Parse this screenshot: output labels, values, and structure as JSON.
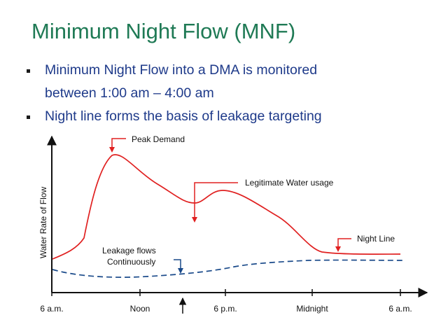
{
  "slide": {
    "title": "Minimum Night Flow (MNF)",
    "bullets": [
      {
        "line1": "Minimum Night Flow into a DMA is monitored",
        "line2": "between 1:00 am – 4:00 am"
      },
      {
        "line1": "Night line forms the basis of leakage targeting"
      }
    ]
  },
  "diagram": {
    "ylabel": "Water Rate of Flow",
    "ticks": [
      "6 a.m.",
      "Noon",
      "6 p.m.",
      "Midnight",
      "6 a.m."
    ],
    "annotations": {
      "peak": "Peak Demand",
      "legitimate": "Legitimate Water usage",
      "night_line": "Night Line",
      "leakage_1": "Leakage flows",
      "leakage_2": "Continuously"
    },
    "colors": {
      "demand": "#e02020",
      "leakage": "#1a4a8a",
      "annotation": "#e02020",
      "axis": "#111111"
    }
  }
}
